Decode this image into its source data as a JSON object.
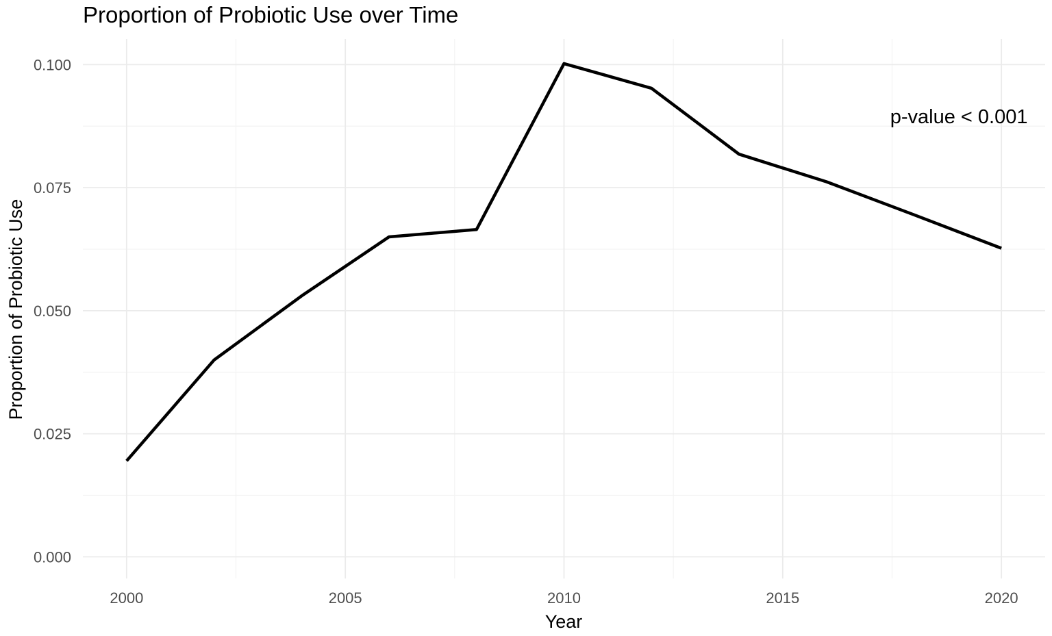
{
  "chart_data": {
    "type": "line",
    "title": "Proportion of Probiotic Use over Time",
    "xlabel": "Year",
    "ylabel": "Proportion of Probiotic Use",
    "x": [
      2000,
      2002,
      2004,
      2006,
      2008,
      2010,
      2012,
      2014,
      2016,
      2018,
      2020
    ],
    "series": [
      {
        "values": [
          0.0195,
          0.04,
          0.053,
          0.065,
          0.0665,
          0.1002,
          0.0952,
          0.0818,
          0.0762,
          0.0695,
          0.0627
        ]
      }
    ],
    "xlim": [
      1999,
      2021
    ],
    "ylim": [
      -0.0044,
      0.1052
    ],
    "x_major_ticks": [
      2000,
      2005,
      2010,
      2015,
      2020
    ],
    "x_minor_ticks": [
      2002.5,
      2007.5,
      2012.5,
      2017.5
    ],
    "y_major_ticks": [
      0.0,
      0.025,
      0.05,
      0.075,
      0.1
    ],
    "y_minor_ticks": [
      0.0125,
      0.0375,
      0.0625,
      0.0875
    ],
    "x_tick_labels": [
      "2000",
      "2005",
      "2010",
      "2015",
      "2020"
    ],
    "y_tick_labels": [
      "0.000",
      "0.025",
      "0.050",
      "0.075",
      "0.100"
    ],
    "annotations": [
      {
        "text": "p-value < 0.001",
        "x": 2020.6,
        "y": 0.0895
      }
    ],
    "grid": true,
    "legend": "none",
    "colors": {
      "line": "#000000",
      "grid_major": "#ebebeb",
      "grid_minor": "#f3f3f3",
      "tick_text": "#4d4d4d"
    }
  }
}
